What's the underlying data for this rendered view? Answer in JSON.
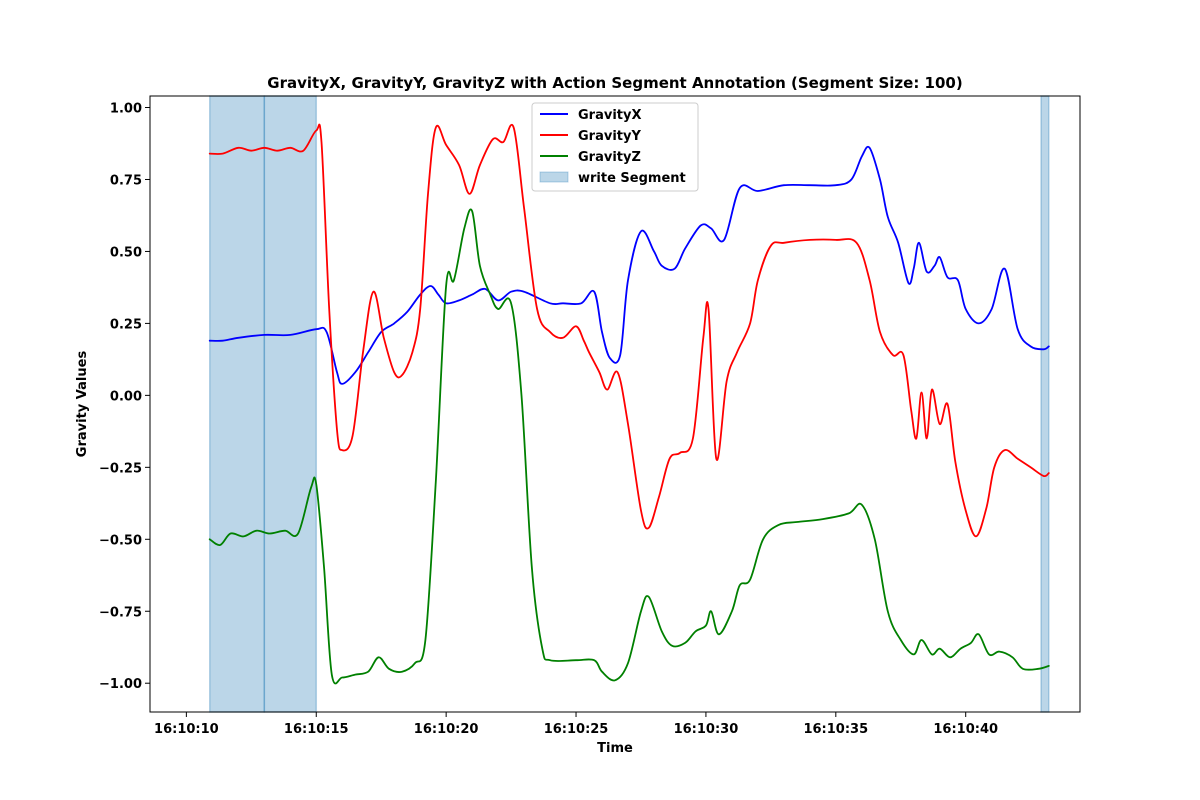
{
  "chart_data": {
    "type": "line",
    "title": "GravityX, GravityY, GravityZ with Action Segment Annotation (Segment Size: 100)",
    "xlabel": "Time",
    "ylabel": "Gravity Values",
    "x_unit": "time of day (16:10:ss.s)",
    "xlim": [
      "16:10:08.6",
      "16:10:44.4"
    ],
    "ylim": [
      -1.1,
      1.04
    ],
    "x_ticks": [
      "16:10:10",
      "16:10:15",
      "16:10:20",
      "16:10:25",
      "16:10:30",
      "16:10:35",
      "16:10:40"
    ],
    "y_ticks": [
      "1.00",
      "0.75",
      "0.50",
      "0.25",
      "0.00",
      "−0.25",
      "−0.50",
      "−0.75",
      "−1.00"
    ],
    "y_tick_values": [
      1.0,
      0.75,
      0.5,
      0.25,
      0.0,
      -0.25,
      -0.5,
      -0.75,
      -1.0
    ],
    "grid": false,
    "legend": "upper center",
    "segments": [
      {
        "name": "write Segment",
        "color": "#1f77b4",
        "start": "16:10:10.9",
        "end": "16:10:13.0"
      },
      {
        "start": "16:10:13.0",
        "end": "16:10:15.0"
      },
      {
        "start": "16:10:42.9",
        "end": "16:10:43.2"
      }
    ],
    "series": [
      {
        "name": "GravityX",
        "color": "#0000ff",
        "points": [
          [
            "16:10:10.9",
            0.19
          ],
          [
            "16:10:11.4",
            0.19
          ],
          [
            "16:10:12.0",
            0.2
          ],
          [
            "16:10:13.0",
            0.21
          ],
          [
            "16:10:14.0",
            0.21
          ],
          [
            "16:10:15.0",
            0.23
          ],
          [
            "16:10:15.4",
            0.22
          ],
          [
            "16:10:15.8",
            0.08
          ],
          [
            "16:10:16.0",
            0.04
          ],
          [
            "16:10:16.5",
            0.08
          ],
          [
            "16:10:17.0",
            0.15
          ],
          [
            "16:10:17.5",
            0.22
          ],
          [
            "16:10:18.0",
            0.25
          ],
          [
            "16:10:18.5",
            0.29
          ],
          [
            "16:10:19.0",
            0.35
          ],
          [
            "16:10:19.4",
            0.38
          ],
          [
            "16:10:19.7",
            0.35
          ],
          [
            "16:10:20.0",
            0.32
          ],
          [
            "16:10:20.5",
            0.33
          ],
          [
            "16:10:21.0",
            0.35
          ],
          [
            "16:10:21.5",
            0.37
          ],
          [
            "16:10:22.0",
            0.33
          ],
          [
            "16:10:22.5",
            0.36
          ],
          [
            "16:10:23.0",
            0.36
          ],
          [
            "16:10:24.0",
            0.32
          ],
          [
            "16:10:24.5",
            0.32
          ],
          [
            "16:10:25.2",
            0.32
          ],
          [
            "16:10:25.7",
            0.36
          ],
          [
            "16:10:26.0",
            0.22
          ],
          [
            "16:10:26.3",
            0.13
          ],
          [
            "16:10:26.7",
            0.14
          ],
          [
            "16:10:27.0",
            0.4
          ],
          [
            "16:10:27.5",
            0.57
          ],
          [
            "16:10:28.0",
            0.5
          ],
          [
            "16:10:28.3",
            0.45
          ],
          [
            "16:10:28.8",
            0.44
          ],
          [
            "16:10:29.2",
            0.51
          ],
          [
            "16:10:29.8",
            0.59
          ],
          [
            "16:10:30.2",
            0.58
          ],
          [
            "16:10:30.7",
            0.54
          ],
          [
            "16:10:31.3",
            0.72
          ],
          [
            "16:10:32.0",
            0.71
          ],
          [
            "16:10:33.0",
            0.73
          ],
          [
            "16:10:34.0",
            0.73
          ],
          [
            "16:10:35.0",
            0.73
          ],
          [
            "16:10:35.6",
            0.75
          ],
          [
            "16:10:36.0",
            0.83
          ],
          [
            "16:10:36.3",
            0.86
          ],
          [
            "16:10:36.7",
            0.75
          ],
          [
            "16:10:37.0",
            0.62
          ],
          [
            "16:10:37.4",
            0.53
          ],
          [
            "16:10:37.8",
            0.39
          ],
          [
            "16:10:38.0",
            0.44
          ],
          [
            "16:10:38.2",
            0.53
          ],
          [
            "16:10:38.5",
            0.43
          ],
          [
            "16:10:38.8",
            0.45
          ],
          [
            "16:10:39.0",
            0.48
          ],
          [
            "16:10:39.3",
            0.41
          ],
          [
            "16:10:39.7",
            0.4
          ],
          [
            "16:10:40.0",
            0.3
          ],
          [
            "16:10:40.5",
            0.25
          ],
          [
            "16:10:41.0",
            0.3
          ],
          [
            "16:10:41.5",
            0.44
          ],
          [
            "16:10:42.0",
            0.23
          ],
          [
            "16:10:42.5",
            0.17
          ],
          [
            "16:10:43.0",
            0.16
          ],
          [
            "16:10:43.2",
            0.17
          ]
        ]
      },
      {
        "name": "GravityY",
        "color": "#ff0000",
        "points": [
          [
            "16:10:10.9",
            0.84
          ],
          [
            "16:10:11.4",
            0.84
          ],
          [
            "16:10:12.0",
            0.86
          ],
          [
            "16:10:12.5",
            0.85
          ],
          [
            "16:10:13.0",
            0.86
          ],
          [
            "16:10:13.5",
            0.85
          ],
          [
            "16:10:14.0",
            0.86
          ],
          [
            "16:10:14.5",
            0.85
          ],
          [
            "16:10:15.0",
            0.92
          ],
          [
            "16:10:15.2",
            0.88
          ],
          [
            "16:10:15.5",
            0.3
          ],
          [
            "16:10:15.8",
            -0.12
          ],
          [
            "16:10:16.0",
            -0.19
          ],
          [
            "16:10:16.4",
            -0.14
          ],
          [
            "16:10:16.8",
            0.15
          ],
          [
            "16:10:17.2",
            0.36
          ],
          [
            "16:10:17.6",
            0.2
          ],
          [
            "16:10:18.0",
            0.08
          ],
          [
            "16:10:18.3",
            0.07
          ],
          [
            "16:10:18.7",
            0.15
          ],
          [
            "16:10:19.0",
            0.3
          ],
          [
            "16:10:19.3",
            0.7
          ],
          [
            "16:10:19.6",
            0.93
          ],
          [
            "16:10:20.0",
            0.87
          ],
          [
            "16:10:20.5",
            0.8
          ],
          [
            "16:10:20.9",
            0.7
          ],
          [
            "16:10:21.3",
            0.8
          ],
          [
            "16:10:21.8",
            0.89
          ],
          [
            "16:10:22.2",
            0.88
          ],
          [
            "16:10:22.6",
            0.93
          ],
          [
            "16:10:23.0",
            0.65
          ],
          [
            "16:10:23.5",
            0.3
          ],
          [
            "16:10:24.0",
            0.22
          ],
          [
            "16:10:24.5",
            0.2
          ],
          [
            "16:10:25.0",
            0.24
          ],
          [
            "16:10:25.3",
            0.19
          ],
          [
            "16:10:25.5",
            0.15
          ],
          [
            "16:10:25.9",
            0.08
          ],
          [
            "16:10:26.2",
            0.02
          ],
          [
            "16:10:26.6",
            0.08
          ],
          [
            "16:10:27.0",
            -0.1
          ],
          [
            "16:10:27.5",
            -0.4
          ],
          [
            "16:10:27.8",
            -0.46
          ],
          [
            "16:10:28.2",
            -0.35
          ],
          [
            "16:10:28.6",
            -0.22
          ],
          [
            "16:10:29.0",
            -0.2
          ],
          [
            "16:10:29.5",
            -0.15
          ],
          [
            "16:10:29.9",
            0.2
          ],
          [
            "16:10:30.1",
            0.3
          ],
          [
            "16:10:30.4",
            -0.22
          ],
          [
            "16:10:30.8",
            0.05
          ],
          [
            "16:10:31.2",
            0.15
          ],
          [
            "16:10:31.7",
            0.25
          ],
          [
            "16:10:32.0",
            0.4
          ],
          [
            "16:10:32.5",
            0.52
          ],
          [
            "16:10:33.0",
            0.53
          ],
          [
            "16:10:34.0",
            0.54
          ],
          [
            "16:10:35.0",
            0.54
          ],
          [
            "16:10:35.8",
            0.53
          ],
          [
            "16:10:36.3",
            0.4
          ],
          [
            "16:10:36.7",
            0.22
          ],
          [
            "16:10:37.2",
            0.14
          ],
          [
            "16:10:37.6",
            0.14
          ],
          [
            "16:10:37.9",
            -0.05
          ],
          [
            "16:10:38.1",
            -0.15
          ],
          [
            "16:10:38.3",
            0.01
          ],
          [
            "16:10:38.5",
            -0.15
          ],
          [
            "16:10:38.7",
            0.02
          ],
          [
            "16:10:39.0",
            -0.1
          ],
          [
            "16:10:39.3",
            -0.03
          ],
          [
            "16:10:39.6",
            -0.23
          ],
          [
            "16:10:40.0",
            -0.4
          ],
          [
            "16:10:40.4",
            -0.49
          ],
          [
            "16:10:40.8",
            -0.39
          ],
          [
            "16:10:41.1",
            -0.25
          ],
          [
            "16:10:41.5",
            -0.19
          ],
          [
            "16:10:42.0",
            -0.22
          ],
          [
            "16:10:42.5",
            -0.25
          ],
          [
            "16:10:43.0",
            -0.28
          ],
          [
            "16:10:43.2",
            -0.27
          ]
        ]
      },
      {
        "name": "GravityZ",
        "color": "#008000",
        "points": [
          [
            "16:10:10.9",
            -0.5
          ],
          [
            "16:10:11.3",
            -0.52
          ],
          [
            "16:10:11.7",
            -0.48
          ],
          [
            "16:10:12.2",
            -0.49
          ],
          [
            "16:10:12.7",
            -0.47
          ],
          [
            "16:10:13.2",
            -0.48
          ],
          [
            "16:10:13.8",
            -0.47
          ],
          [
            "16:10:14.3",
            -0.48
          ],
          [
            "16:10:14.8",
            -0.32
          ],
          [
            "16:10:15.0",
            -0.31
          ],
          [
            "16:10:15.3",
            -0.6
          ],
          [
            "16:10:15.6",
            -0.97
          ],
          [
            "16:10:16.0",
            -0.98
          ],
          [
            "16:10:16.5",
            -0.97
          ],
          [
            "16:10:17.0",
            -0.96
          ],
          [
            "16:10:17.4",
            -0.91
          ],
          [
            "16:10:17.8",
            -0.95
          ],
          [
            "16:10:18.3",
            -0.96
          ],
          [
            "16:10:18.8",
            -0.93
          ],
          [
            "16:10:19.2",
            -0.85
          ],
          [
            "16:10:19.6",
            -0.3
          ],
          [
            "16:10:20.0",
            0.38
          ],
          [
            "16:10:20.3",
            0.4
          ],
          [
            "16:10:20.7",
            0.58
          ],
          [
            "16:10:21.0",
            0.64
          ],
          [
            "16:10:21.3",
            0.45
          ],
          [
            "16:10:21.7",
            0.35
          ],
          [
            "16:10:22.0",
            0.3
          ],
          [
            "16:10:22.5",
            0.32
          ],
          [
            "16:10:22.9",
            0.0
          ],
          [
            "16:10:23.3",
            -0.6
          ],
          [
            "16:10:23.7",
            -0.88
          ],
          [
            "16:10:24.0",
            -0.92
          ],
          [
            "16:10:25.0",
            -0.92
          ],
          [
            "16:10:25.7",
            -0.92
          ],
          [
            "16:10:26.0",
            -0.96
          ],
          [
            "16:10:26.5",
            -0.99
          ],
          [
            "16:10:27.0",
            -0.93
          ],
          [
            "16:10:27.5",
            -0.75
          ],
          [
            "16:10:27.8",
            -0.7
          ],
          [
            "16:10:28.3",
            -0.82
          ],
          [
            "16:10:28.7",
            -0.87
          ],
          [
            "16:10:29.2",
            -0.86
          ],
          [
            "16:10:29.6",
            -0.82
          ],
          [
            "16:10:30.0",
            -0.8
          ],
          [
            "16:10:30.2",
            -0.75
          ],
          [
            "16:10:30.5",
            -0.83
          ],
          [
            "16:10:31.0",
            -0.75
          ],
          [
            "16:10:31.3",
            -0.66
          ],
          [
            "16:10:31.7",
            -0.64
          ],
          [
            "16:10:32.2",
            -0.5
          ],
          [
            "16:10:32.8",
            -0.45
          ],
          [
            "16:10:33.5",
            -0.44
          ],
          [
            "16:10:34.5",
            -0.43
          ],
          [
            "16:10:35.5",
            -0.41
          ],
          [
            "16:10:36.0",
            -0.38
          ],
          [
            "16:10:36.5",
            -0.5
          ],
          [
            "16:10:37.0",
            -0.75
          ],
          [
            "16:10:37.5",
            -0.85
          ],
          [
            "16:10:38.0",
            -0.9
          ],
          [
            "16:10:38.3",
            -0.85
          ],
          [
            "16:10:38.7",
            -0.9
          ],
          [
            "16:10:39.0",
            -0.88
          ],
          [
            "16:10:39.4",
            -0.91
          ],
          [
            "16:10:39.8",
            -0.88
          ],
          [
            "16:10:40.2",
            -0.86
          ],
          [
            "16:10:40.5",
            -0.83
          ],
          [
            "16:10:40.9",
            -0.9
          ],
          [
            "16:10:41.3",
            -0.89
          ],
          [
            "16:10:41.8",
            -0.91
          ],
          [
            "16:10:42.2",
            -0.95
          ],
          [
            "16:10:42.8",
            -0.95
          ],
          [
            "16:10:43.2",
            -0.94
          ]
        ]
      }
    ]
  }
}
